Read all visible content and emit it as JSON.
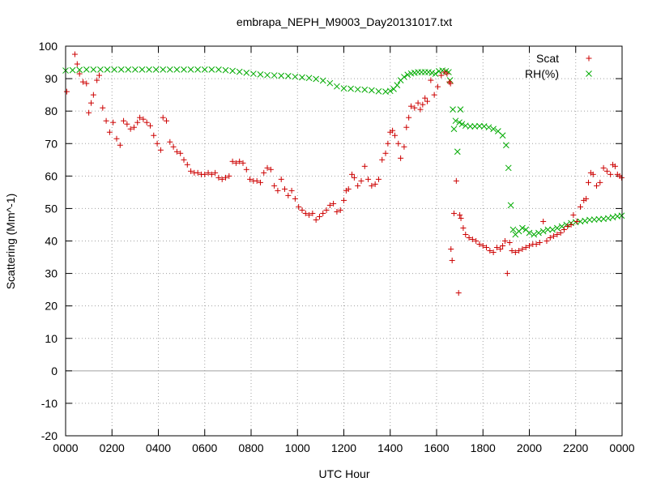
{
  "chart_data": {
    "type": "scatter",
    "title": "embrapa_NEPH_M9003_Day20131017.txt",
    "xlabel": "UTC Hour",
    "ylabel": "Scattering (Mm^-1)",
    "xlim": [
      0,
      24
    ],
    "ylim": [
      -20,
      100
    ],
    "x_ticks": [
      0,
      2,
      4,
      6,
      8,
      10,
      12,
      14,
      16,
      18,
      20,
      22,
      24
    ],
    "x_tick_labels": [
      "0000",
      "0200",
      "0400",
      "0600",
      "0800",
      "1000",
      "1200",
      "1400",
      "1600",
      "1800",
      "2000",
      "2200",
      "0000"
    ],
    "y_ticks": [
      -20,
      -10,
      0,
      10,
      20,
      30,
      40,
      50,
      60,
      70,
      80,
      90,
      100
    ],
    "y_tick_labels": [
      "-20",
      "-10",
      "0",
      "10",
      "20",
      "30",
      "40",
      "50",
      "60",
      "70",
      "80",
      "90",
      "100"
    ],
    "zero_line": true,
    "grid": true,
    "legend_position": "top-right",
    "series": [
      {
        "name": "Scat",
        "marker": "plus",
        "color": "#cc0000",
        "points": [
          [
            0.05,
            86
          ],
          [
            0.4,
            97.5
          ],
          [
            0.5,
            94.5
          ],
          [
            0.6,
            91.5
          ],
          [
            0.75,
            89
          ],
          [
            0.9,
            88.5
          ],
          [
            1.0,
            79.5
          ],
          [
            1.1,
            82.5
          ],
          [
            1.2,
            85
          ],
          [
            1.35,
            89.5
          ],
          [
            1.45,
            91
          ],
          [
            1.6,
            81
          ],
          [
            1.75,
            77
          ],
          [
            1.9,
            73.5
          ],
          [
            2.05,
            76.5
          ],
          [
            2.2,
            71.5
          ],
          [
            2.35,
            69.5
          ],
          [
            2.5,
            77
          ],
          [
            2.65,
            76
          ],
          [
            2.8,
            74.5
          ],
          [
            2.95,
            75
          ],
          [
            3.1,
            76.5
          ],
          [
            3.2,
            78
          ],
          [
            3.35,
            77.5
          ],
          [
            3.5,
            76.5
          ],
          [
            3.65,
            75.5
          ],
          [
            3.8,
            72.5
          ],
          [
            3.95,
            70
          ],
          [
            4.1,
            68
          ],
          [
            4.2,
            78
          ],
          [
            4.35,
            77
          ],
          [
            4.5,
            70.5
          ],
          [
            4.65,
            69
          ],
          [
            4.8,
            67.5
          ],
          [
            4.95,
            67
          ],
          [
            5.1,
            65
          ],
          [
            5.25,
            63.5
          ],
          [
            5.4,
            61.5
          ],
          [
            5.55,
            61
          ],
          [
            5.7,
            61
          ],
          [
            5.85,
            60.5
          ],
          [
            6.0,
            60.5
          ],
          [
            6.15,
            61
          ],
          [
            6.3,
            60.5
          ],
          [
            6.45,
            61
          ],
          [
            6.6,
            59.5
          ],
          [
            6.75,
            59
          ],
          [
            6.9,
            59.5
          ],
          [
            7.05,
            60
          ],
          [
            7.2,
            64.5
          ],
          [
            7.35,
            64
          ],
          [
            7.5,
            64.5
          ],
          [
            7.65,
            64
          ],
          [
            7.8,
            62
          ],
          [
            7.95,
            59
          ],
          [
            8.1,
            58.5
          ],
          [
            8.25,
            58.5
          ],
          [
            8.4,
            58
          ],
          [
            8.55,
            61
          ],
          [
            8.7,
            62.5
          ],
          [
            8.85,
            62
          ],
          [
            9.0,
            57
          ],
          [
            9.15,
            55.5
          ],
          [
            9.3,
            59
          ],
          [
            9.45,
            56
          ],
          [
            9.6,
            54
          ],
          [
            9.75,
            55.5
          ],
          [
            9.9,
            53
          ],
          [
            10.05,
            50.5
          ],
          [
            10.2,
            49.5
          ],
          [
            10.35,
            48.5
          ],
          [
            10.5,
            48
          ],
          [
            10.65,
            48.5
          ],
          [
            10.8,
            46.5
          ],
          [
            10.95,
            47.5
          ],
          [
            11.1,
            48.5
          ],
          [
            11.25,
            49.5
          ],
          [
            11.4,
            51
          ],
          [
            11.55,
            51.5
          ],
          [
            11.7,
            49
          ],
          [
            11.85,
            49.5
          ],
          [
            12.0,
            52.5
          ],
          [
            12.1,
            55.5
          ],
          [
            12.2,
            56
          ],
          [
            12.35,
            60.5
          ],
          [
            12.45,
            59.5
          ],
          [
            12.6,
            57
          ],
          [
            12.75,
            58.5
          ],
          [
            12.9,
            63
          ],
          [
            13.05,
            59
          ],
          [
            13.2,
            57
          ],
          [
            13.35,
            57.5
          ],
          [
            13.5,
            59
          ],
          [
            13.65,
            65
          ],
          [
            13.8,
            67
          ],
          [
            13.9,
            70
          ],
          [
            14.0,
            73.5
          ],
          [
            14.1,
            74
          ],
          [
            14.2,
            72.5
          ],
          [
            14.35,
            70
          ],
          [
            14.45,
            65.5
          ],
          [
            14.6,
            69
          ],
          [
            14.7,
            75
          ],
          [
            14.8,
            78
          ],
          [
            14.9,
            81.5
          ],
          [
            15.05,
            81
          ],
          [
            15.2,
            82.5
          ],
          [
            15.3,
            80.5
          ],
          [
            15.4,
            82
          ],
          [
            15.5,
            84
          ],
          [
            15.6,
            83
          ],
          [
            15.75,
            89.5
          ],
          [
            15.9,
            85
          ],
          [
            16.05,
            87.5
          ],
          [
            16.2,
            91
          ],
          [
            16.35,
            92
          ],
          [
            16.45,
            91.5
          ],
          [
            16.55,
            89
          ],
          [
            16.6,
            88.5
          ],
          [
            16.62,
            37.5
          ],
          [
            16.67,
            34
          ],
          [
            16.75,
            48.5
          ],
          [
            16.85,
            58.5
          ],
          [
            16.95,
            24
          ],
          [
            17.0,
            48
          ],
          [
            17.05,
            47
          ],
          [
            17.15,
            44
          ],
          [
            17.25,
            42
          ],
          [
            17.4,
            41
          ],
          [
            17.55,
            40.5
          ],
          [
            17.7,
            40
          ],
          [
            17.85,
            39
          ],
          [
            18.0,
            38.5
          ],
          [
            18.15,
            38
          ],
          [
            18.3,
            37
          ],
          [
            18.45,
            36.5
          ],
          [
            18.6,
            38
          ],
          [
            18.75,
            37.5
          ],
          [
            18.85,
            38.5
          ],
          [
            18.95,
            40
          ],
          [
            19.05,
            30
          ],
          [
            19.15,
            39.5
          ],
          [
            19.25,
            37
          ],
          [
            19.4,
            36.5
          ],
          [
            19.55,
            37
          ],
          [
            19.7,
            37.5
          ],
          [
            19.85,
            38
          ],
          [
            20.0,
            38.5
          ],
          [
            20.15,
            39
          ],
          [
            20.3,
            39
          ],
          [
            20.45,
            39.5
          ],
          [
            20.6,
            46
          ],
          [
            20.75,
            40
          ],
          [
            20.9,
            41
          ],
          [
            21.05,
            41.5
          ],
          [
            21.2,
            42
          ],
          [
            21.35,
            42.5
          ],
          [
            21.5,
            43.5
          ],
          [
            21.65,
            44.5
          ],
          [
            21.8,
            45
          ],
          [
            21.9,
            48
          ],
          [
            22.05,
            46
          ],
          [
            22.2,
            50.5
          ],
          [
            22.35,
            52.5
          ],
          [
            22.45,
            53
          ],
          [
            22.55,
            58
          ],
          [
            22.65,
            61
          ],
          [
            22.75,
            60.5
          ],
          [
            22.9,
            57
          ],
          [
            23.05,
            58
          ],
          [
            23.2,
            62.5
          ],
          [
            23.35,
            61.5
          ],
          [
            23.5,
            60.5
          ],
          [
            23.6,
            63.5
          ],
          [
            23.7,
            63
          ],
          [
            23.8,
            60.5
          ],
          [
            23.9,
            60
          ],
          [
            23.98,
            59.5
          ]
        ]
      },
      {
        "name": "RH(%)",
        "marker": "cross",
        "color": "#00aa00",
        "points": [
          [
            0.0,
            92.5
          ],
          [
            0.3,
            92.6
          ],
          [
            0.6,
            92.7
          ],
          [
            0.9,
            92.8
          ],
          [
            1.2,
            92.8
          ],
          [
            1.5,
            92.8
          ],
          [
            1.8,
            92.8
          ],
          [
            2.1,
            92.8
          ],
          [
            2.4,
            92.8
          ],
          [
            2.7,
            92.8
          ],
          [
            3.0,
            92.8
          ],
          [
            3.3,
            92.8
          ],
          [
            3.6,
            92.8
          ],
          [
            3.9,
            92.8
          ],
          [
            4.2,
            92.8
          ],
          [
            4.5,
            92.8
          ],
          [
            4.8,
            92.8
          ],
          [
            5.1,
            92.8
          ],
          [
            5.4,
            92.8
          ],
          [
            5.7,
            92.8
          ],
          [
            6.0,
            92.8
          ],
          [
            6.3,
            92.8
          ],
          [
            6.6,
            92.8
          ],
          [
            6.9,
            92.6
          ],
          [
            7.2,
            92.4
          ],
          [
            7.5,
            92.1
          ],
          [
            7.8,
            91.8
          ],
          [
            8.1,
            91.5
          ],
          [
            8.4,
            91.3
          ],
          [
            8.7,
            91.1
          ],
          [
            9.0,
            91.0
          ],
          [
            9.3,
            90.9
          ],
          [
            9.6,
            90.8
          ],
          [
            9.9,
            90.6
          ],
          [
            10.2,
            90.4
          ],
          [
            10.5,
            90.2
          ],
          [
            10.8,
            89.9
          ],
          [
            11.1,
            89.4
          ],
          [
            11.4,
            88.6
          ],
          [
            11.7,
            87.6
          ],
          [
            12.0,
            87.0
          ],
          [
            12.3,
            86.9
          ],
          [
            12.6,
            86.7
          ],
          [
            12.9,
            86.6
          ],
          [
            13.2,
            86.4
          ],
          [
            13.5,
            86.1
          ],
          [
            13.8,
            86.0
          ],
          [
            14.0,
            86.2
          ],
          [
            14.15,
            86.8
          ],
          [
            14.3,
            88.0
          ],
          [
            14.45,
            89.5
          ],
          [
            14.6,
            90.5
          ],
          [
            14.75,
            91.2
          ],
          [
            14.9,
            91.6
          ],
          [
            15.05,
            91.8
          ],
          [
            15.2,
            92.0
          ],
          [
            15.35,
            92.0
          ],
          [
            15.5,
            92.0
          ],
          [
            15.65,
            92.0
          ],
          [
            15.8,
            91.8
          ],
          [
            15.95,
            91.5
          ],
          [
            16.1,
            92.3
          ],
          [
            16.25,
            92.5
          ],
          [
            16.4,
            92.3
          ],
          [
            16.52,
            92.0
          ],
          [
            16.58,
            89.5
          ],
          [
            16.7,
            80.5
          ],
          [
            16.75,
            74.5
          ],
          [
            16.82,
            77
          ],
          [
            16.9,
            67.5
          ],
          [
            16.98,
            76.5
          ],
          [
            17.03,
            80.5
          ],
          [
            17.1,
            76
          ],
          [
            17.25,
            75.5
          ],
          [
            17.45,
            75.3
          ],
          [
            17.65,
            75.3
          ],
          [
            17.85,
            75.4
          ],
          [
            18.05,
            75.3
          ],
          [
            18.25,
            75.0
          ],
          [
            18.45,
            74.5
          ],
          [
            18.65,
            73.8
          ],
          [
            18.85,
            72.5
          ],
          [
            19.0,
            69.5
          ],
          [
            19.1,
            62.5
          ],
          [
            19.2,
            51
          ],
          [
            19.3,
            43.5
          ],
          [
            19.4,
            42
          ],
          [
            19.55,
            43
          ],
          [
            19.7,
            44
          ],
          [
            19.85,
            43.5
          ],
          [
            20.0,
            42.5
          ],
          [
            20.2,
            42.0
          ],
          [
            20.4,
            42.5
          ],
          [
            20.6,
            43.0
          ],
          [
            20.8,
            43.5
          ],
          [
            21.0,
            43.5
          ],
          [
            21.2,
            44.0
          ],
          [
            21.4,
            44.5
          ],
          [
            21.6,
            45.0
          ],
          [
            21.8,
            45.5
          ],
          [
            22.0,
            45.8
          ],
          [
            22.2,
            46.0
          ],
          [
            22.4,
            46.2
          ],
          [
            22.6,
            46.5
          ],
          [
            22.8,
            46.6
          ],
          [
            23.0,
            46.7
          ],
          [
            23.2,
            46.8
          ],
          [
            23.4,
            47.0
          ],
          [
            23.6,
            47.3
          ],
          [
            23.8,
            47.6
          ],
          [
            23.98,
            47.8
          ]
        ]
      }
    ]
  }
}
